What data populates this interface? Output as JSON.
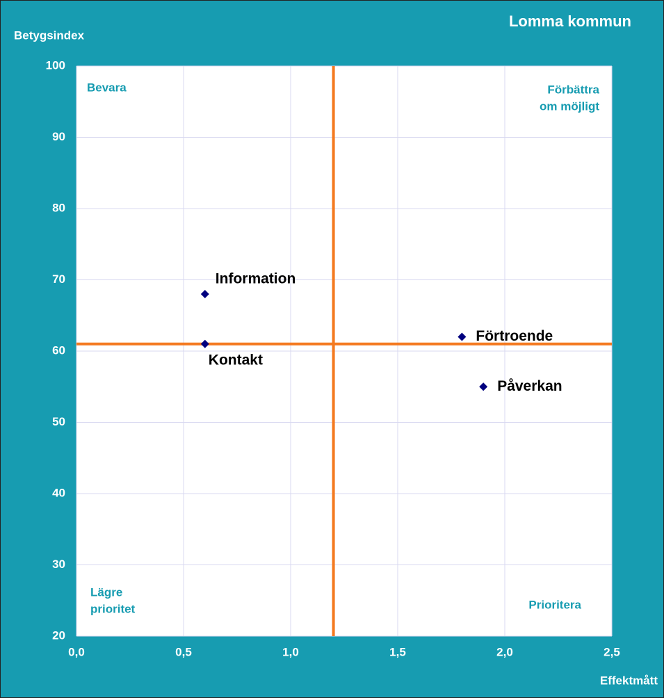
{
  "chart_data": {
    "type": "scatter",
    "title": "Lomma kommun",
    "y_label": "Betygsindex",
    "x_label": "Effektmått",
    "x": [
      0.6,
      0.6,
      1.8,
      1.9
    ],
    "values": [
      68,
      61,
      62,
      55
    ],
    "point_labels": [
      "Information",
      "Kontakt",
      "Förtroende",
      "Påverkan"
    ],
    "color": "#00007f",
    "xlim": [
      0,
      2.5
    ],
    "ylim": [
      20,
      100
    ],
    "xticks": [
      {
        "value": 0,
        "label": "0,0"
      },
      {
        "value": 0.5,
        "label": "0,5"
      },
      {
        "value": 1,
        "label": "1,0"
      },
      {
        "value": 1.5,
        "label": "1,5"
      },
      {
        "value": 2,
        "label": "2,0"
      },
      {
        "value": 2.5,
        "label": "2,5"
      }
    ],
    "yticks": [
      20,
      30,
      40,
      50,
      60,
      70,
      80,
      90,
      100
    ],
    "grid": true,
    "reference_lines": {
      "x": 1.2,
      "y": 61,
      "color": "#f47a20"
    },
    "annotations": [
      [
        "Bevara"
      ],
      [
        "Förbättra",
        "om möjligt"
      ],
      [
        "Lägre",
        "prioritet"
      ],
      [
        "Prioritera"
      ]
    ]
  }
}
